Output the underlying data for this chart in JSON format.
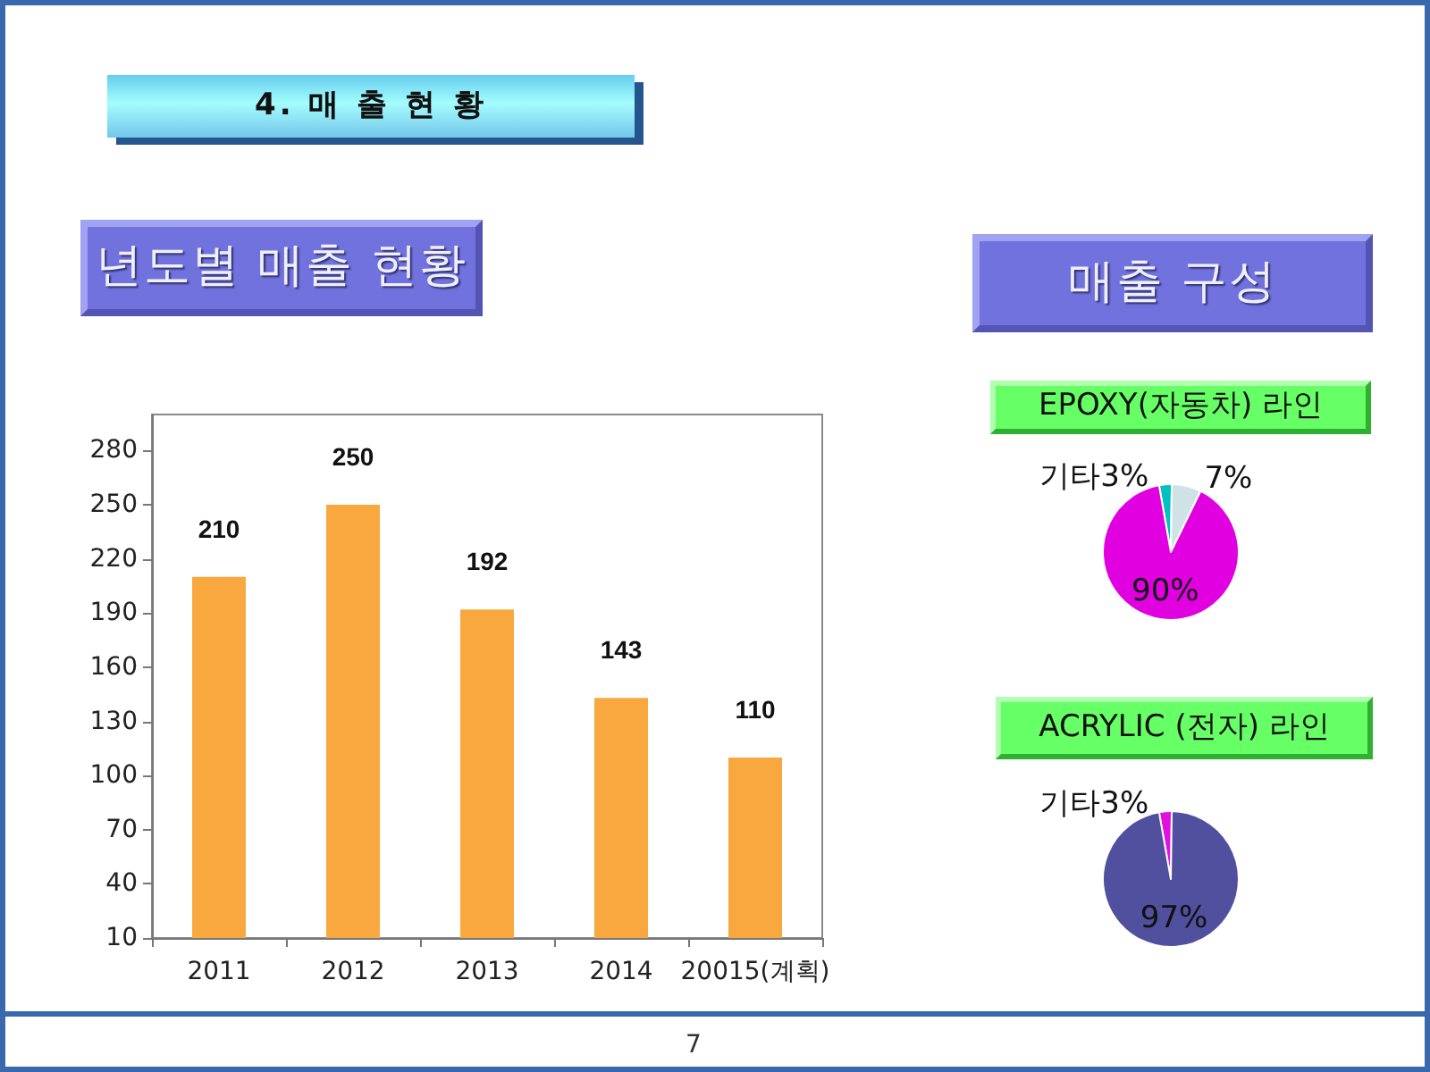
{
  "chart_data": [
    {
      "type": "bar",
      "title": "4. 매 출 현 황",
      "subtitle": "년도별 매출 현황",
      "categories": [
        "2011",
        "2012",
        "2013",
        "2014",
        "20015(계획)"
      ],
      "values": [
        210,
        250,
        192,
        143,
        110
      ],
      "color": "#f8a83e",
      "ylim": [
        10,
        300
      ],
      "yticks": [
        10,
        40,
        70,
        100,
        130,
        160,
        190,
        220,
        250,
        280
      ],
      "data_labels": true,
      "annotations": [
        "7"
      ]
    },
    {
      "type": "pie",
      "title": "매출 구성",
      "subtitle": "EPOXY(자동차) 라인",
      "categories": [
        "기타",
        null,
        null
      ],
      "values": [
        3,
        7,
        90
      ],
      "value_labels": [
        "3%",
        "7%",
        "90%"
      ],
      "colors": [
        "#00c0c0",
        "#cfe3e6",
        "#e000e0"
      ]
    },
    {
      "type": "pie",
      "title": "ACRYLIC (전자) 라인",
      "categories": [
        "기타",
        null
      ],
      "values": [
        3,
        97
      ],
      "value_labels": [
        "3%",
        "97%"
      ],
      "colors": [
        "#e010e0",
        "#50509f"
      ]
    }
  ]
}
